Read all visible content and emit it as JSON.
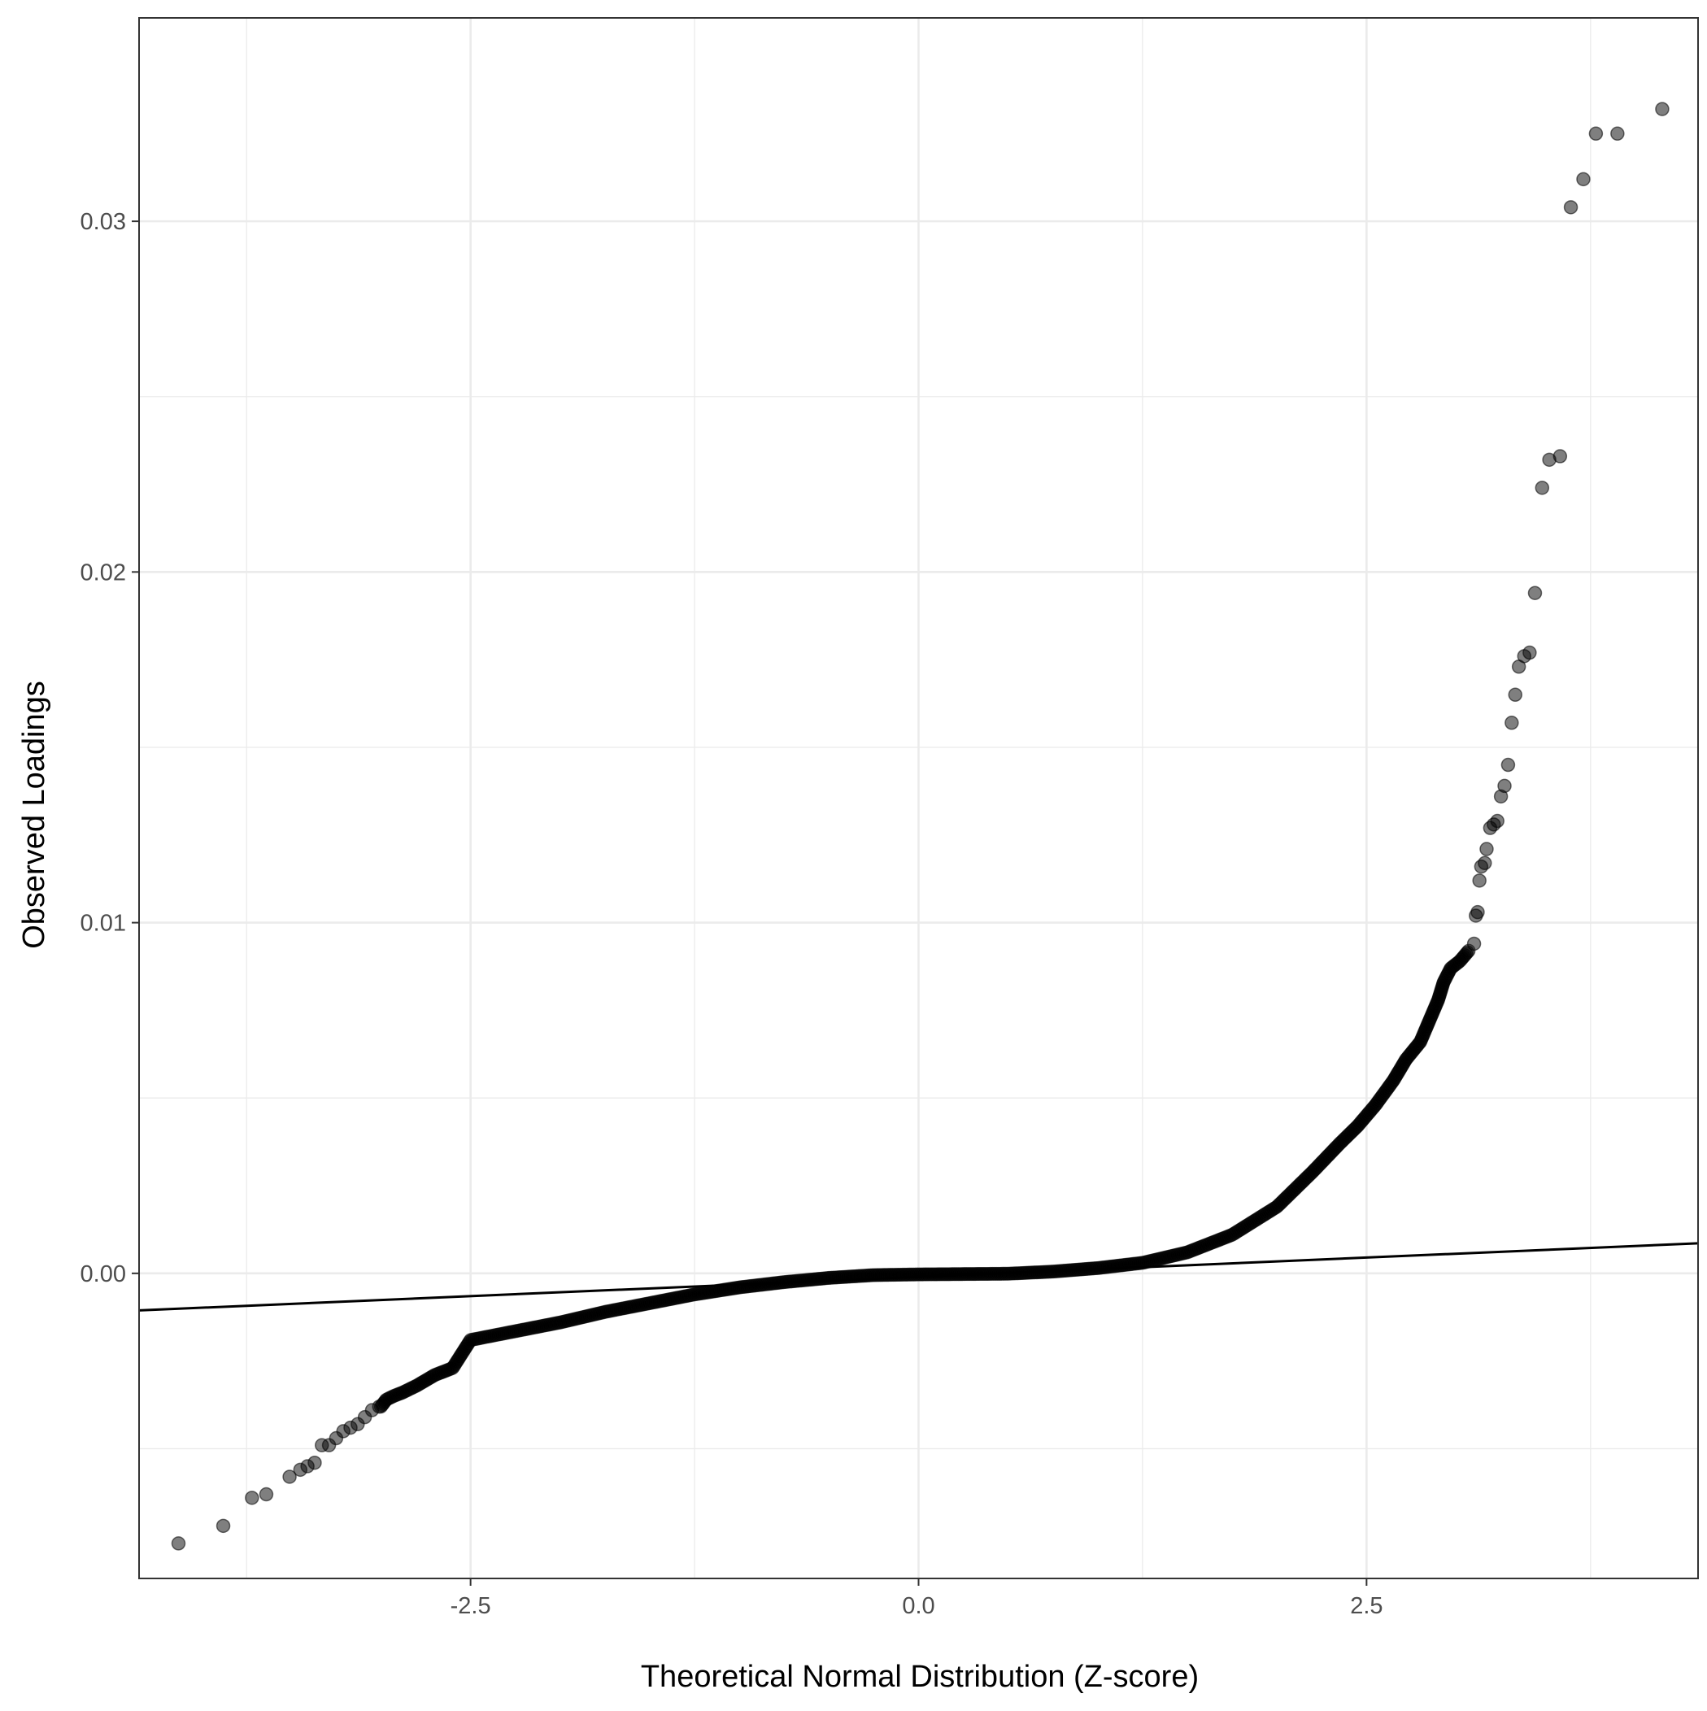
{
  "chart_data": {
    "type": "scatter",
    "title": "",
    "xlabel": "Theoretical Normal Distribution (Z-score)",
    "ylabel": "Observed Loadings",
    "xlim": [
      -4.35,
      4.35
    ],
    "ylim": [
      -0.0087,
      0.0358
    ],
    "x_ticks": [
      -2.5,
      0.0,
      2.5
    ],
    "x_tick_labels": [
      "-2.5",
      "0.0",
      "2.5"
    ],
    "y_ticks": [
      0.0,
      0.01,
      0.02,
      0.03
    ],
    "y_tick_labels": [
      "0.00",
      "0.01",
      "0.02",
      "0.03"
    ],
    "x_minor_ticks": [
      -3.75,
      -1.25,
      1.25,
      3.75
    ],
    "y_minor_ticks": [
      -0.005,
      0.005,
      0.015,
      0.025
    ],
    "grid": true,
    "legend": "none",
    "point_color": "#000000",
    "point_opacity": 0.5,
    "line_color": "#000000",
    "reference_line": {
      "intercept": -0.0001,
      "slope": 0.00022
    },
    "outliers": [
      {
        "x": -4.13,
        "y": -0.0077
      },
      {
        "x": -3.88,
        "y": -0.0072
      },
      {
        "x": -3.72,
        "y": -0.0064
      },
      {
        "x": -3.64,
        "y": -0.0063
      },
      {
        "x": -3.51,
        "y": -0.0058
      },
      {
        "x": -3.45,
        "y": -0.0056
      },
      {
        "x": -3.41,
        "y": -0.0055
      },
      {
        "x": -3.37,
        "y": -0.0054
      },
      {
        "x": -3.33,
        "y": -0.0049
      },
      {
        "x": -3.29,
        "y": -0.0049
      },
      {
        "x": -3.25,
        "y": -0.0047
      },
      {
        "x": -3.21,
        "y": -0.0045
      },
      {
        "x": -3.17,
        "y": -0.0044
      },
      {
        "x": -3.13,
        "y": -0.0043
      },
      {
        "x": -3.09,
        "y": -0.0041
      },
      {
        "x": -3.05,
        "y": -0.0039
      },
      {
        "x": -3.01,
        "y": -0.0038
      },
      {
        "x": 3.1,
        "y": 0.0094
      },
      {
        "x": 3.11,
        "y": 0.0102
      },
      {
        "x": 3.12,
        "y": 0.0103
      },
      {
        "x": 3.13,
        "y": 0.0112
      },
      {
        "x": 3.14,
        "y": 0.0116
      },
      {
        "x": 3.16,
        "y": 0.0117
      },
      {
        "x": 3.17,
        "y": 0.0121
      },
      {
        "x": 3.19,
        "y": 0.0127
      },
      {
        "x": 3.21,
        "y": 0.0128
      },
      {
        "x": 3.23,
        "y": 0.0129
      },
      {
        "x": 3.25,
        "y": 0.0136
      },
      {
        "x": 3.27,
        "y": 0.0139
      },
      {
        "x": 3.29,
        "y": 0.0145
      },
      {
        "x": 3.31,
        "y": 0.0157
      },
      {
        "x": 3.33,
        "y": 0.0165
      },
      {
        "x": 3.35,
        "y": 0.0173
      },
      {
        "x": 3.38,
        "y": 0.0176
      },
      {
        "x": 3.41,
        "y": 0.0177
      },
      {
        "x": 3.44,
        "y": 0.0194
      },
      {
        "x": 3.48,
        "y": 0.0224
      },
      {
        "x": 3.52,
        "y": 0.0232
      },
      {
        "x": 3.58,
        "y": 0.0233
      },
      {
        "x": 3.64,
        "y": 0.0304
      },
      {
        "x": 3.71,
        "y": 0.0312
      },
      {
        "x": 3.78,
        "y": 0.0325
      },
      {
        "x": 3.9,
        "y": 0.0325
      },
      {
        "x": 4.15,
        "y": 0.0332
      }
    ],
    "dense_curve": [
      {
        "x": -3.0,
        "y": -0.0038
      },
      {
        "x": -2.97,
        "y": -0.0036
      },
      {
        "x": -2.93,
        "y": -0.0035
      },
      {
        "x": -2.88,
        "y": -0.0034
      },
      {
        "x": -2.8,
        "y": -0.0032
      },
      {
        "x": -2.7,
        "y": -0.0029
      },
      {
        "x": -2.6,
        "y": -0.0027
      },
      {
        "x": -2.5,
        "y": -0.0019
      },
      {
        "x": -2.3,
        "y": -0.0017
      },
      {
        "x": -2.0,
        "y": -0.0014
      },
      {
        "x": -1.75,
        "y": -0.0011
      },
      {
        "x": -1.5,
        "y": -0.00085
      },
      {
        "x": -1.25,
        "y": -0.0006
      },
      {
        "x": -1.0,
        "y": -0.0004
      },
      {
        "x": -0.75,
        "y": -0.00025
      },
      {
        "x": -0.5,
        "y": -0.00013
      },
      {
        "x": -0.25,
        "y": -5e-05
      },
      {
        "x": 0.0,
        "y": -3e-05
      },
      {
        "x": 0.25,
        "y": -2e-05
      },
      {
        "x": 0.5,
        "y": -1e-05
      },
      {
        "x": 0.75,
        "y": 5e-05
      },
      {
        "x": 1.0,
        "y": 0.00015
      },
      {
        "x": 1.25,
        "y": 0.0003
      },
      {
        "x": 1.5,
        "y": 0.0006
      },
      {
        "x": 1.75,
        "y": 0.0011
      },
      {
        "x": 2.0,
        "y": 0.0019
      },
      {
        "x": 2.2,
        "y": 0.0029
      },
      {
        "x": 2.35,
        "y": 0.0037
      },
      {
        "x": 2.45,
        "y": 0.0042
      },
      {
        "x": 2.55,
        "y": 0.0048
      },
      {
        "x": 2.65,
        "y": 0.0055
      },
      {
        "x": 2.72,
        "y": 0.0061
      },
      {
        "x": 2.8,
        "y": 0.0066
      },
      {
        "x": 2.85,
        "y": 0.0072
      },
      {
        "x": 2.9,
        "y": 0.0078
      },
      {
        "x": 2.93,
        "y": 0.0083
      },
      {
        "x": 2.97,
        "y": 0.0087
      },
      {
        "x": 3.02,
        "y": 0.0089
      },
      {
        "x": 3.07,
        "y": 0.0092
      }
    ]
  }
}
